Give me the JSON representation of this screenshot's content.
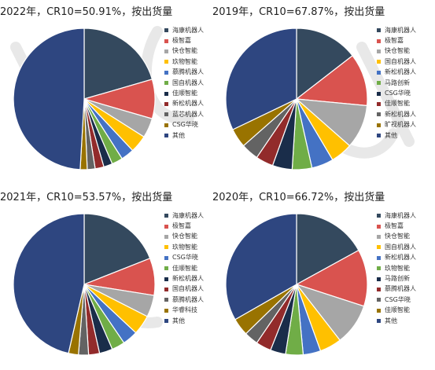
{
  "chart_data": [
    {
      "type": "pie",
      "title": "2022年，CR10=50.91%，按出货量",
      "labels": [
        "海康机器人",
        "极智嘉",
        "快仓智能",
        "玖物智能",
        "慕腾机器人",
        "国自机器人",
        "佳顺智能",
        "新松机器人",
        "蓝芯机器人",
        "CSG华晓",
        "其他"
      ],
      "values": [
        20.5,
        9.0,
        4.5,
        4.0,
        3.0,
        2.5,
        2.0,
        2.0,
        1.8,
        1.6,
        49.09
      ],
      "colors": [
        "#34495e",
        "#d9534f",
        "#a6a6a6",
        "#ffc000",
        "#4472c4",
        "#70ad47",
        "#1a2d4a",
        "#922b2b",
        "#636363",
        "#997300",
        "#2e4680"
      ],
      "legend": "right"
    },
    {
      "type": "pie",
      "title": "2019年，CR10=67.87%，按出货量",
      "labels": [
        "海康机器人",
        "极智嘉",
        "快仓智能",
        "国自机器人",
        "新松机器人",
        "马路创新",
        "CSG华晓",
        "佳顺智能",
        "新松机器人",
        "旷视机器人",
        "其他"
      ],
      "values": [
        14.5,
        12.0,
        10.0,
        5.0,
        5.0,
        4.5,
        4.5,
        4.0,
        4.0,
        4.37,
        32.13
      ],
      "colors": [
        "#34495e",
        "#d9534f",
        "#a6a6a6",
        "#ffc000",
        "#4472c4",
        "#70ad47",
        "#1a2d4a",
        "#922b2b",
        "#636363",
        "#997300",
        "#2e4680"
      ],
      "legend": "right"
    },
    {
      "type": "pie",
      "title": "2021年，CR10=53.57%，按出货量",
      "labels": [
        "海康机器人",
        "极智嘉",
        "快仓智能",
        "玖物智能",
        "CSG华晓",
        "佳顺智能",
        "新松机器人",
        "国自机器人",
        "慕腾机器人",
        "华睿科技",
        "其他"
      ],
      "values": [
        19.0,
        8.5,
        5.0,
        4.5,
        3.5,
        3.0,
        3.0,
        2.5,
        2.3,
        2.27,
        46.43
      ],
      "colors": [
        "#34495e",
        "#d9534f",
        "#a6a6a6",
        "#ffc000",
        "#4472c4",
        "#70ad47",
        "#1a2d4a",
        "#922b2b",
        "#636363",
        "#997300",
        "#2e4680"
      ],
      "legend": "right"
    },
    {
      "type": "pie",
      "title": "2020年，CR10=66.72%，按出货量",
      "labels": [
        "海康机器人",
        "极智嘉",
        "快仓智能",
        "国自机器人",
        "新松机器人",
        "玖物智能",
        "马路创新",
        "慕腾机器人",
        "CSG华晓",
        "佳顺智能",
        "其他"
      ],
      "values": [
        17.0,
        13.0,
        9.5,
        5.0,
        4.0,
        4.0,
        3.5,
        3.5,
        3.2,
        4.02,
        33.28
      ],
      "colors": [
        "#34495e",
        "#d9534f",
        "#a6a6a6",
        "#ffc000",
        "#4472c4",
        "#70ad47",
        "#1a2d4a",
        "#922b2b",
        "#636363",
        "#997300",
        "#2e4680"
      ],
      "legend": "right"
    }
  ]
}
